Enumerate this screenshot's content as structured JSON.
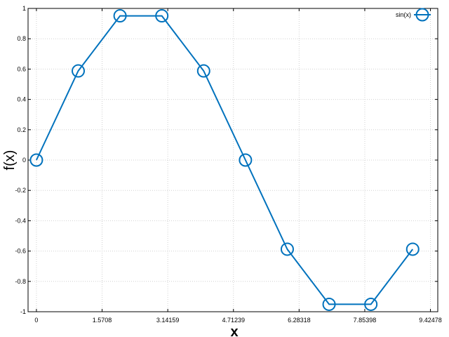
{
  "chart_data": {
    "type": "line",
    "title": "",
    "xlabel": "x",
    "ylabel": "f(x)",
    "xlim": [
      -0.2,
      9.6
    ],
    "ylim": [
      -1,
      1
    ],
    "xticks": [
      0,
      1.5708,
      3.14159,
      4.71239,
      6.28318,
      7.85398,
      9.42478
    ],
    "xtick_labels": [
      "0",
      "1.5708",
      "3.14159",
      "4.71239",
      "6.28318",
      "7.85398",
      "9.42478"
    ],
    "yticks": [
      -1,
      -0.8,
      -0.6,
      -0.4,
      -0.2,
      0,
      0.2,
      0.4,
      0.6,
      0.8,
      1
    ],
    "ytick_labels": [
      "-1",
      "-0.8",
      "-0.6",
      "-0.4",
      "-0.2",
      "0",
      "0.2",
      "0.4",
      "0.6",
      "0.8",
      "1"
    ],
    "grid": true,
    "legend": {
      "position": "top-right"
    },
    "series": [
      {
        "name": "sin(x)",
        "color": "#0072bd",
        "marker": "circle-open",
        "x": [
          0,
          1,
          2,
          3,
          4,
          5,
          6,
          7,
          8,
          9
        ],
        "y": [
          0,
          0.5878,
          0.9511,
          0.9511,
          0.5878,
          0,
          -0.5878,
          -0.9511,
          -0.9511,
          -0.5878
        ]
      }
    ]
  }
}
